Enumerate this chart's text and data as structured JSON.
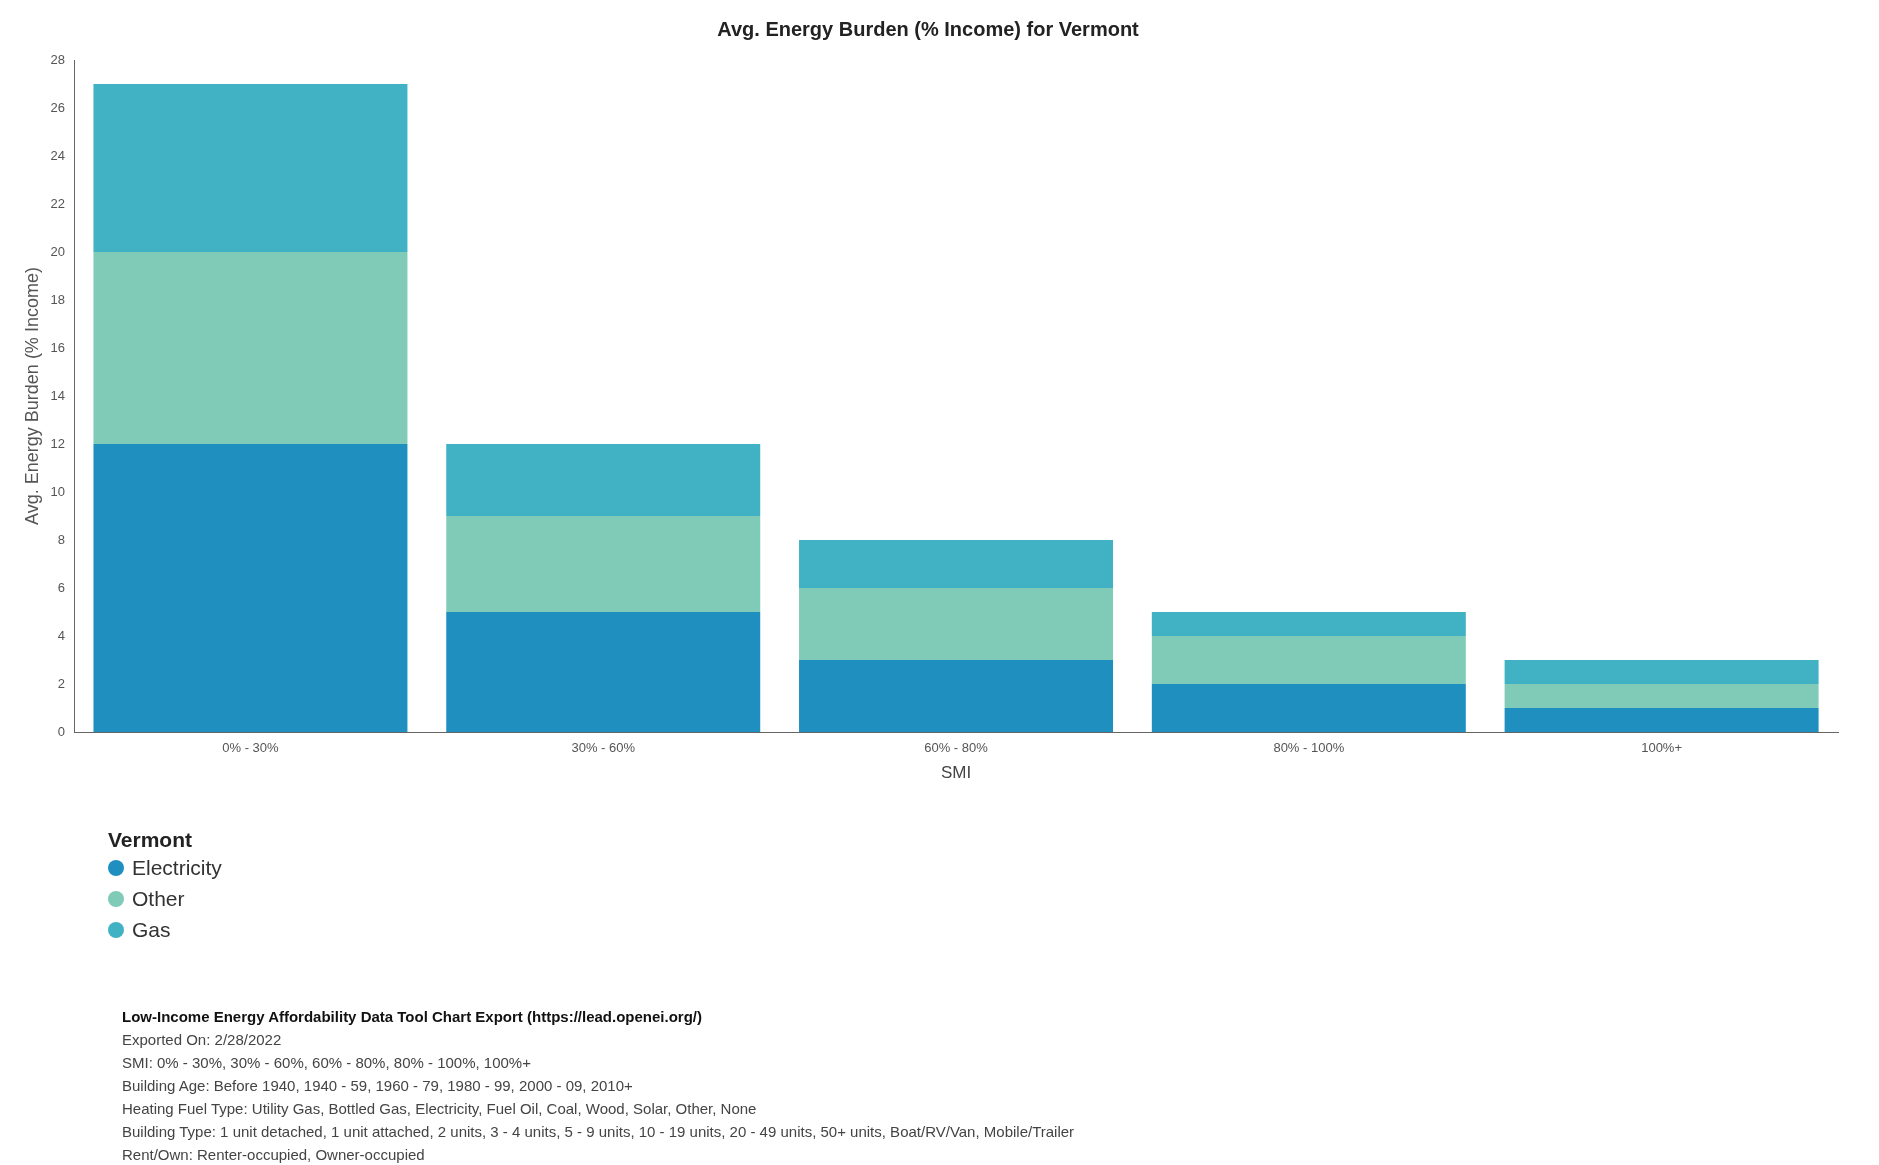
{
  "chart_data": {
    "type": "bar",
    "title": "Avg. Energy Burden (% Income) for Vermont",
    "xlabel": "SMI",
    "ylabel": "Avg. Energy Burden (% Income)",
    "categories": [
      "0% - 30%",
      "30% - 60%",
      "60% - 80%",
      "80% - 100%",
      "100%+"
    ],
    "stacked": true,
    "series": [
      {
        "name": "Electricity",
        "color": "#1f8fc0",
        "values": [
          12,
          5,
          3,
          2,
          1
        ]
      },
      {
        "name": "Other",
        "color": "#80cbb8",
        "values": [
          8,
          4,
          3,
          2,
          1
        ]
      },
      {
        "name": "Gas",
        "color": "#40b2c4",
        "values": [
          7,
          3,
          2,
          1,
          1
        ]
      }
    ],
    "ylim": [
      0,
      28
    ],
    "yticks": [
      0,
      2,
      4,
      6,
      8,
      10,
      12,
      14,
      16,
      18,
      20,
      22,
      24,
      26,
      28
    ],
    "grid": false,
    "legend": "bottom left",
    "legend_title": "Vermont",
    "annotations": [
      "Low-Income Energy Affordability Data Tool Chart Export (https://lead.openei.org/)",
      "Exported On: 2/28/2022",
      "SMI: 0% - 30%, 30% - 60%, 60% - 80%, 80% - 100%, 100%+",
      "Building Age: Before 1940, 1940 - 59, 1960 - 79, 1980 - 99, 2000 - 09, 2010+",
      "Heating Fuel Type: Utility Gas, Bottled Gas, Electricity, Fuel Oil, Coal, Wood, Solar, Other, None",
      "Building Type: 1 unit detached, 1 unit attached, 2 units, 3 - 4 units, 5 - 9 units, 10 - 19 units, 20 - 49 units, 50+ units, Boat/RV/Van, Mobile/Trailer",
      "Rent/Own: Renter-occupied, Owner-occupied"
    ]
  }
}
